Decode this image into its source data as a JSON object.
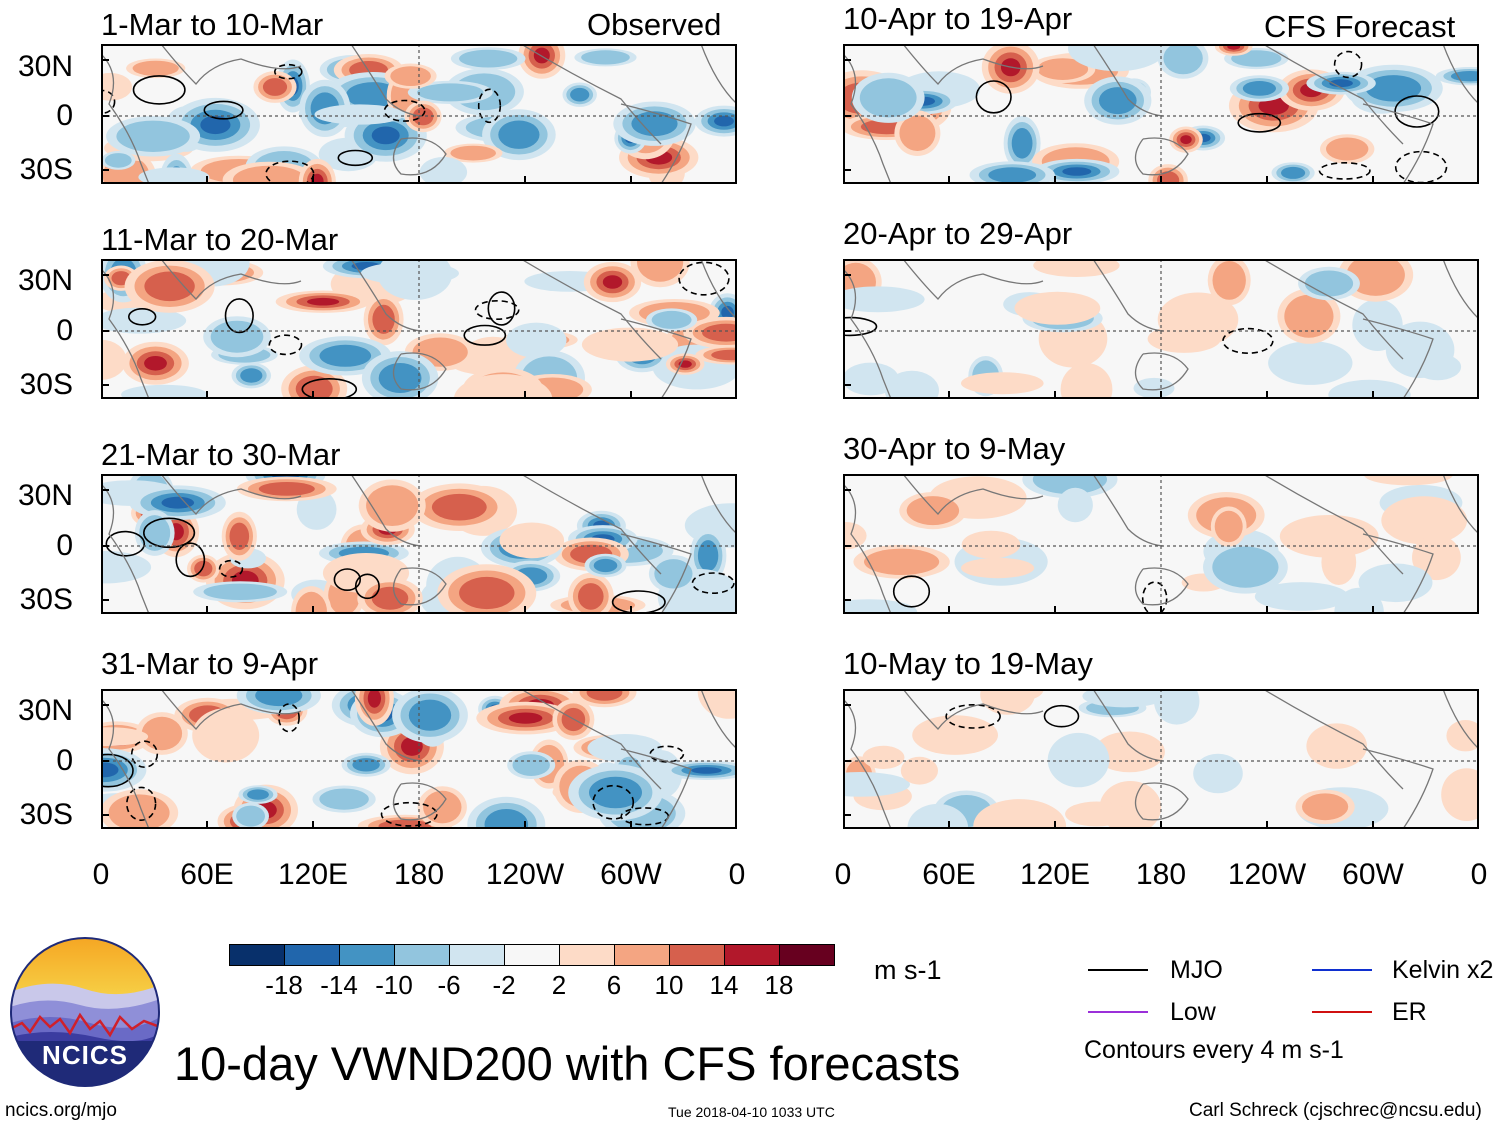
{
  "header": {
    "observed_label": "Observed",
    "forecast_label": "CFS Forecast"
  },
  "panels_observed": [
    {
      "title": "1-Mar to 10-Mar"
    },
    {
      "title": "11-Mar to 20-Mar"
    },
    {
      "title": "21-Mar to 30-Mar"
    },
    {
      "title": "31-Mar to 9-Apr"
    }
  ],
  "panels_forecast": [
    {
      "title": "10-Apr to 19-Apr"
    },
    {
      "title": "20-Apr to 29-Apr"
    },
    {
      "title": "30-Apr to 9-May"
    },
    {
      "title": "10-May to 19-May"
    }
  ],
  "chart_data": {
    "type": "heatmap",
    "title": "10-day VWND200 with CFS forecasts",
    "variable": "VWND200",
    "units": "m s-1",
    "x_tick_labels": [
      "0",
      "60E",
      "120E",
      "180",
      "120W",
      "60W",
      "0"
    ],
    "y_tick_labels": [
      "30N",
      "0",
      "30S"
    ],
    "colorbar": {
      "tick_labels": [
        "-18",
        "-14",
        "-10",
        "-6",
        "-2",
        "2",
        "6",
        "10",
        "14",
        "18"
      ],
      "levels": [
        -18,
        -14,
        -10,
        -6,
        -2,
        2,
        6,
        10,
        14,
        18
      ],
      "colors": [
        "#08306b",
        "#2166ac",
        "#4393c3",
        "#92c5de",
        "#d1e5f0",
        "#f7f7f7",
        "#fddbc7",
        "#f4a582",
        "#d6604d",
        "#b2182b",
        "#67001f"
      ]
    },
    "contour_legend": [
      {
        "label": "MJO",
        "color": "#000000"
      },
      {
        "label": "Kelvin x2",
        "color": "#1030d0"
      },
      {
        "label": "Low",
        "color": "#9b30d9"
      },
      {
        "label": "ER",
        "color": "#d01010"
      }
    ],
    "contour_note": "Contours every 4 m s-1",
    "observed_periods": [
      "1-Mar to 10-Mar",
      "11-Mar to 20-Mar",
      "21-Mar to 30-Mar",
      "31-Mar to 9-Apr"
    ],
    "forecast_periods": [
      "10-Apr to 19-Apr",
      "20-Apr to 29-Apr",
      "30-Apr to 9-May",
      "10-May to 19-May"
    ]
  },
  "colorbar_units": "m s-1",
  "legend": {
    "mjo": "MJO",
    "kelvin": "Kelvin x2",
    "low": "Low",
    "er": "ER",
    "contours": "Contours every 4 m s-1"
  },
  "logo": {
    "text": "NCICS"
  },
  "footer": {
    "main_title": "10-day VWND200 with CFS forecasts",
    "url": "ncics.org/mjo",
    "timestamp": "Tue 2018-04-10 1033 UTC",
    "author": "Carl Schreck (cjschrec@ncsu.edu)"
  },
  "colors": {
    "mjo_line": "#000000",
    "kelvin_line": "#1030d0",
    "low_line": "#9b30d9",
    "er_line": "#d01010",
    "coast": "#777777"
  }
}
